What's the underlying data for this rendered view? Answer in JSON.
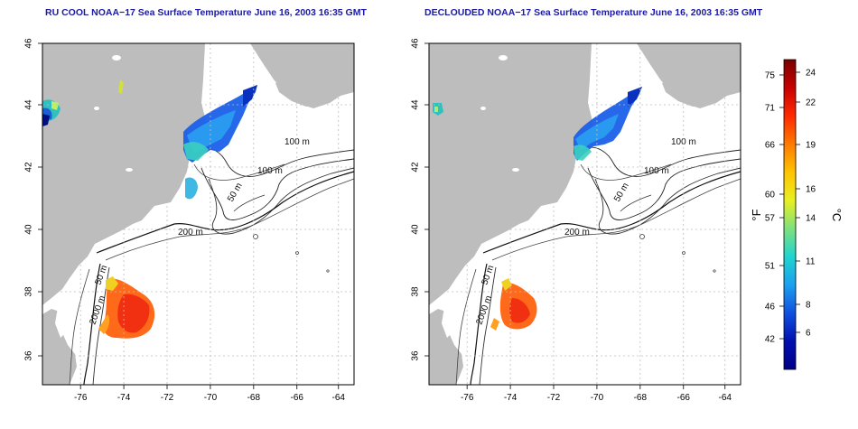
{
  "panels": [
    {
      "title": "RU COOL NOAA−17 Sea Surface Temperature June 16, 2003 16:35 GMT",
      "x_ticks": [
        "-76",
        "-74",
        "-72",
        "-70",
        "-68",
        "-66",
        "-64"
      ],
      "y_ticks": [
        "36",
        "38",
        "40",
        "42",
        "44",
        "46"
      ],
      "contours": {
        "c100a": "100 m",
        "c100b": "100 m",
        "c50a": "50 m",
        "c200": "200 m",
        "c50b": "50 m",
        "c2000": "2000 m"
      }
    },
    {
      "title": "DECLOUDED NOAA−17 Sea Surface Temperature June 16, 2003 16:35 GMT",
      "x_ticks": [
        "-76",
        "-74",
        "-72",
        "-70",
        "-68",
        "-66",
        "-64"
      ],
      "y_ticks": [
        "36",
        "38",
        "40",
        "42",
        "44",
        "46"
      ],
      "contours": {
        "c100a": "100 m",
        "c100b": "100 m",
        "c50a": "50 m",
        "c200": "200 m",
        "c50b": "50 m",
        "c2000": "2000 m"
      }
    }
  ],
  "colorbar": {
    "f_label": "°F",
    "c_label": "°C",
    "f_ticks": [
      "75",
      "71",
      "66",
      "60",
      "57",
      "51",
      "46",
      "42"
    ],
    "c_ticks": [
      "24",
      "22",
      "19",
      "16",
      "14",
      "11",
      "8",
      "6"
    ],
    "colors": [
      "#7a0000",
      "#c80000",
      "#ff2a00",
      "#ff7a00",
      "#ffc400",
      "#e8f020",
      "#7ee07e",
      "#20d4d0",
      "#1aa0f0",
      "#1050e0",
      "#0010b0",
      "#000088"
    ]
  },
  "colors": {
    "land": "#bdbdbd",
    "water": "#ffffff",
    "title": "#1a1aa6",
    "grid": "#bdbdbd"
  }
}
